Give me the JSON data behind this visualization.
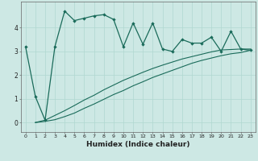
{
  "xlabel": "Humidex (Indice chaleur)",
  "bg_color": "#cde8e4",
  "line_color": "#1a6b5a",
  "grid_color": "#b0d8d0",
  "xlim": [
    -0.5,
    23.5
  ],
  "ylim": [
    -0.4,
    5.1
  ],
  "xticks": [
    0,
    1,
    2,
    3,
    4,
    5,
    6,
    7,
    8,
    9,
    10,
    11,
    12,
    13,
    14,
    15,
    16,
    17,
    18,
    19,
    20,
    21,
    22,
    23
  ],
  "yticks": [
    0,
    1,
    2,
    3,
    4
  ],
  "main_line_x": [
    0,
    1,
    2,
    3,
    4,
    5,
    6,
    7,
    8,
    9,
    10,
    11,
    12,
    13,
    14,
    15,
    16,
    17,
    18,
    19,
    20,
    21,
    22,
    23
  ],
  "main_line_y": [
    3.2,
    1.1,
    0.1,
    3.2,
    4.7,
    4.3,
    4.4,
    4.5,
    4.55,
    4.35,
    3.2,
    4.2,
    3.3,
    4.2,
    3.1,
    3.0,
    3.5,
    3.35,
    3.35,
    3.6,
    3.0,
    3.85,
    3.1,
    3.05
  ],
  "line2_x": [
    1,
    2,
    3,
    4,
    5,
    6,
    7,
    8,
    9,
    10,
    11,
    12,
    13,
    14,
    15,
    16,
    17,
    18,
    19,
    20,
    21,
    22,
    23
  ],
  "line2_y": [
    0.0,
    0.05,
    0.12,
    0.25,
    0.4,
    0.6,
    0.78,
    0.98,
    1.18,
    1.35,
    1.55,
    1.72,
    1.9,
    2.05,
    2.2,
    2.35,
    2.5,
    2.62,
    2.72,
    2.82,
    2.9,
    2.95,
    3.05
  ],
  "line3_x": [
    1,
    2,
    3,
    4,
    5,
    6,
    7,
    8,
    9,
    10,
    11,
    12,
    13,
    14,
    15,
    16,
    17,
    18,
    19,
    20,
    21,
    22,
    23
  ],
  "line3_y": [
    0.0,
    0.1,
    0.3,
    0.5,
    0.72,
    0.95,
    1.15,
    1.38,
    1.58,
    1.78,
    1.95,
    2.12,
    2.28,
    2.42,
    2.55,
    2.68,
    2.78,
    2.88,
    2.98,
    3.06,
    3.08,
    3.1,
    3.1
  ]
}
